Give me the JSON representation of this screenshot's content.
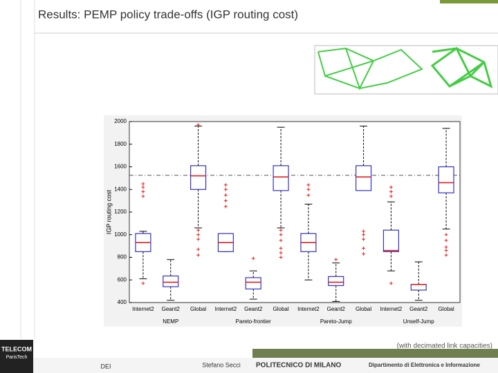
{
  "slide": {
    "title": "Results: PEMP policy trade-offs (IGP routing cost)",
    "note": "(with decimated link capacities)",
    "footer": {
      "left": "DEI",
      "center": "Stefano Secci",
      "logo_top": "TELECOM",
      "logo_bottom": "ParisTech",
      "university": "POLITECNICO DI MILANO",
      "department": "Dipartimento di Elettronica e Informazione"
    }
  },
  "chart_data": {
    "type": "box",
    "ylabel": "IGP routing cost",
    "categories": [
      "Internet2",
      "Geant2",
      "Global",
      "Internet2",
      "Geant2",
      "Global",
      "Internet2",
      "Geant2",
      "Global",
      "Internet2",
      "Geant2",
      "Global"
    ],
    "groups": [
      "NEMP",
      "Pareto-frontier",
      "Pareto-Jump",
      "Unself-Jump"
    ],
    "ylim": [
      400,
      2000
    ],
    "yticks": [
      400,
      600,
      800,
      1000,
      1200,
      1400,
      1600,
      1800,
      2000
    ],
    "reference_line": 1525,
    "box_color": "#3030c0",
    "median_color": "#e02020",
    "outlier_color": "#e02020",
    "boxes": [
      {
        "low": 610,
        "q1": 850,
        "median": 930,
        "q3": 1010,
        "high": 1030,
        "outliers": [
          570,
          1340,
          1380,
          1420,
          1450
        ]
      },
      {
        "low": 420,
        "q1": 540,
        "median": 580,
        "q3": 635,
        "high": 780,
        "outliers": []
      },
      {
        "low": 1060,
        "q1": 1400,
        "median": 1520,
        "q3": 1610,
        "high": 1960,
        "outliers": [
          820,
          870,
          960,
          1000,
          1040,
          1970
        ]
      },
      {
        "low": 850,
        "q1": 850,
        "median": 930,
        "q3": 1010,
        "high": 1010,
        "outliers": [
          1250,
          1300,
          1350,
          1400,
          1440
        ]
      },
      {
        "low": 430,
        "q1": 520,
        "median": 580,
        "q3": 620,
        "high": 680,
        "outliers": [
          790
        ]
      },
      {
        "low": 1060,
        "q1": 1390,
        "median": 1510,
        "q3": 1610,
        "high": 1950,
        "outliers": [
          800,
          840,
          880,
          950,
          1000,
          1040
        ]
      },
      {
        "low": 600,
        "q1": 850,
        "median": 930,
        "q3": 1010,
        "high": 1270,
        "outliers": [
          1350,
          1400,
          1440
        ]
      },
      {
        "low": 410,
        "q1": 550,
        "median": 580,
        "q3": 630,
        "high": 750,
        "outliers": [
          780
        ]
      },
      {
        "low": 1390,
        "q1": 1390,
        "median": 1510,
        "q3": 1610,
        "high": 1960,
        "outliers": [
          830,
          880,
          960,
          1000,
          1030
        ]
      },
      {
        "low": 680,
        "q1": 850,
        "median": 860,
        "q3": 1040,
        "high": 1290,
        "outliers": [
          570,
          1340,
          1380,
          1420
        ]
      },
      {
        "low": 420,
        "q1": 510,
        "median": 560,
        "q3": 560,
        "high": 760,
        "outliers": []
      },
      {
        "low": 1050,
        "q1": 1370,
        "median": 1460,
        "q3": 1600,
        "high": 1940,
        "outliers": [
          820,
          860,
          890,
          950,
          1000
        ]
      }
    ]
  }
}
